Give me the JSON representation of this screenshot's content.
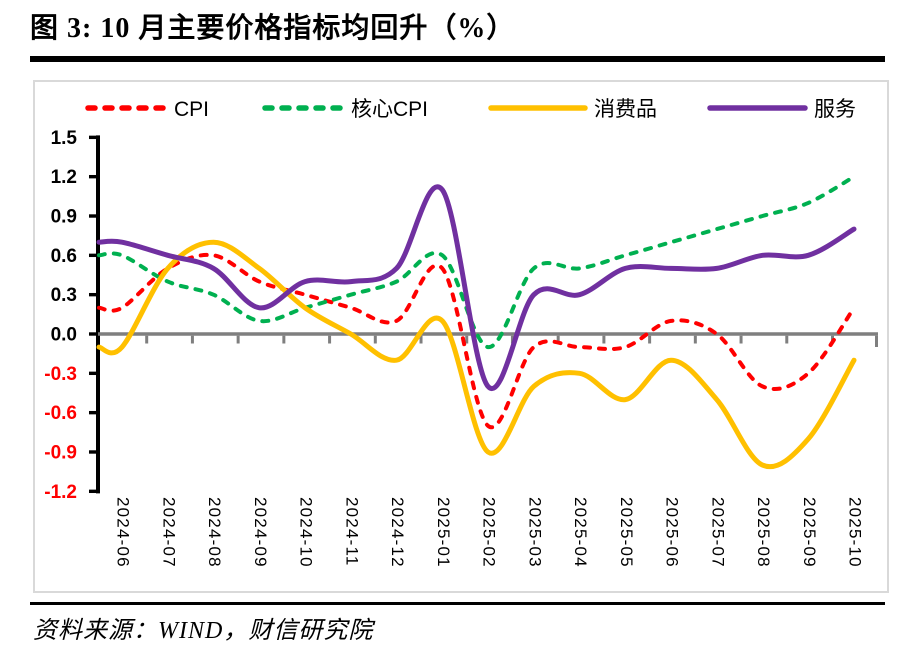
{
  "title": "图 3: 10 月主要价格指标均回升（%）",
  "source": "资料来源：WIND，财信研究院",
  "chart_data": {
    "type": "line",
    "title": "图 3: 10 月主要价格指标均回升（%）",
    "unit": "%",
    "categories": [
      "2024-06",
      "2024-07",
      "2024-08",
      "2024-09",
      "2024-10",
      "2024-11",
      "2024-12",
      "2025-01",
      "2025-02",
      "2025-03",
      "2025-04",
      "2025-05",
      "2025-06",
      "2025-07",
      "2025-08",
      "2025-09",
      "2025-10"
    ],
    "series": [
      {
        "name": "CPI",
        "color": "#FF0000",
        "line_style": "dashed",
        "values": [
          0.2,
          0.5,
          0.6,
          0.4,
          0.3,
          0.2,
          0.1,
          0.5,
          -0.7,
          -0.1,
          -0.1,
          -0.1,
          0.1,
          0.0,
          -0.4,
          -0.3,
          0.2
        ]
      },
      {
        "name": "核心CPI",
        "color": "#00B050",
        "line_style": "dashed",
        "values": [
          0.6,
          0.4,
          0.3,
          0.1,
          0.2,
          0.3,
          0.4,
          0.6,
          -0.1,
          0.5,
          0.5,
          0.6,
          0.7,
          0.8,
          0.9,
          1.0,
          1.2
        ]
      },
      {
        "name": "消费品",
        "color": "#FFC000",
        "line_style": "solid",
        "values": [
          -0.1,
          0.5,
          0.7,
          0.5,
          0.2,
          0.0,
          -0.2,
          0.1,
          -0.9,
          -0.4,
          -0.3,
          -0.5,
          -0.2,
          -0.5,
          -1.0,
          -0.8,
          -0.2
        ]
      },
      {
        "name": "服务",
        "color": "#7030A0",
        "line_style": "solid",
        "values": [
          0.7,
          0.6,
          0.5,
          0.2,
          0.4,
          0.4,
          0.5,
          1.1,
          -0.4,
          0.3,
          0.3,
          0.5,
          0.5,
          0.5,
          0.6,
          0.6,
          0.8
        ]
      }
    ],
    "ylim": [
      -1.2,
      1.5
    ],
    "y_tick_step": 0.3,
    "y_ticks": [
      "1.5",
      "1.2",
      "0.9",
      "0.6",
      "0.3",
      "0.0",
      "-0.3",
      "-0.6",
      "-0.9",
      "-1.2"
    ],
    "y_tick_color_positive": "#000000",
    "y_tick_color_negative": "#FF0000",
    "zero_line_color": "#7F7F7F",
    "axis_color": "#000000",
    "frame_color": "#D9D9D9",
    "grid": false,
    "legend_position": "top",
    "smooth": true
  }
}
